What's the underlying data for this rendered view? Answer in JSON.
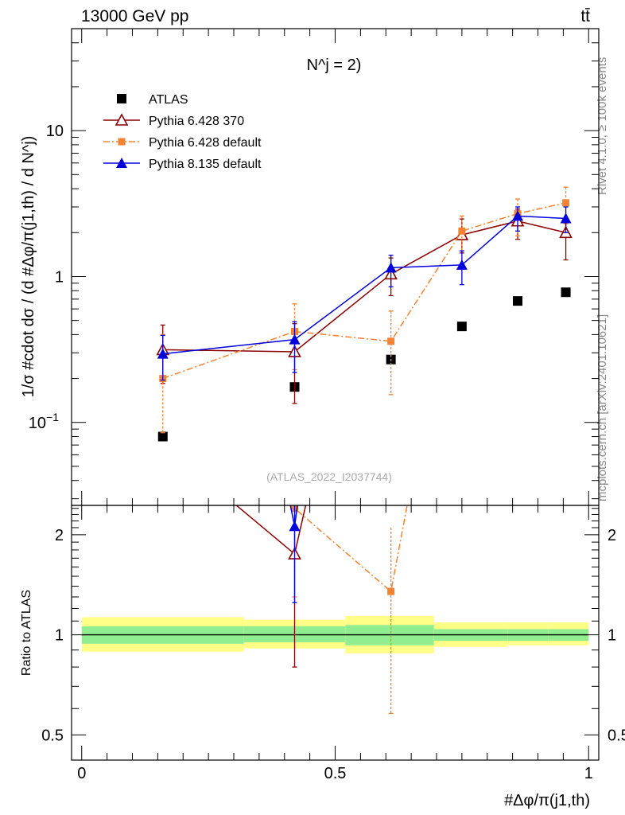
{
  "header": {
    "energy_label": "13000 GeV pp",
    "process_label": "tt̄"
  },
  "side_labels": {
    "rivet": "Rivet 4.1.0, ≥ 100k events",
    "mcplots": "mcplots.cern.ch [arXiv:2401.10621]"
  },
  "chart_data": [
    {
      "type": "line",
      "panel": "main",
      "title": "N^j = 2)",
      "watermark": "(ATLAS_2022_I2037744)",
      "xlabel": "#Δφ/π(j1,th)",
      "ylabel": "1/σ #cdot dσ / (d #Δφ/π(j1,th) / d N^j)",
      "yscale": "log",
      "xlim": [
        -0.02,
        1.02
      ],
      "ylim": [
        0.027,
        50
      ],
      "ytick_labels": [
        "10^-1",
        "1",
        "10"
      ],
      "x": [
        0.16,
        0.42,
        0.61,
        0.75,
        0.86,
        0.955
      ],
      "series": [
        {
          "name": "ATLAS",
          "color": "#000000",
          "marker": "square",
          "values": [
            0.08,
            0.175,
            0.27,
            0.455,
            0.68,
            0.78
          ],
          "err_lo": [
            0.0,
            0.0,
            0.0,
            0.0,
            0.0,
            0.0
          ],
          "err_hi": [
            0.0,
            0.0,
            0.0,
            0.0,
            0.0,
            0.0
          ]
        },
        {
          "name": "Pythia 6.428 370",
          "color": "#8b0000",
          "marker": "open-triangle",
          "dash": "",
          "values": [
            0.315,
            0.305,
            1.04,
            1.93,
            2.4,
            2.0
          ],
          "err_lo": [
            0.13,
            0.17,
            0.3,
            0.48,
            0.6,
            0.7
          ],
          "err_hi": [
            0.15,
            0.17,
            0.3,
            0.55,
            0.5,
            0.5
          ]
        },
        {
          "name": "Pythia 6.428 default",
          "color": "#f58231",
          "marker": "filled-square",
          "dash": "8 3 2 3",
          "values": [
            0.2,
            0.42,
            0.36,
            2.05,
            2.7,
            3.2
          ],
          "err_lo": [
            0.115,
            0.19,
            0.205,
            0.55,
            0.8,
            0.9
          ],
          "err_hi": [
            0.2,
            0.23,
            0.22,
            0.55,
            0.7,
            0.9
          ]
        },
        {
          "name": "Pythia 8.135 default",
          "color": "#0000dd",
          "marker": "filled-triangle",
          "dash": "",
          "values": [
            0.295,
            0.37,
            1.15,
            1.2,
            2.6,
            2.5
          ],
          "err_lo": [
            0.1,
            0.15,
            0.3,
            0.32,
            0.55,
            0.5
          ],
          "err_hi": [
            0.1,
            0.12,
            0.25,
            0.3,
            0.4,
            0.5
          ]
        }
      ]
    },
    {
      "type": "line",
      "panel": "ratio",
      "ylabel": "Ratio to ATLAS",
      "yscale": "log",
      "xlim": [
        -0.02,
        1.02
      ],
      "ylim": [
        0.42,
        2.45
      ],
      "ytick_labels": [
        "0.5",
        "1",
        "2"
      ],
      "xtick_labels": [
        "0",
        "0.5",
        "1"
      ],
      "reference_line": 1.0,
      "bands": {
        "bins": [
          [
            0.0,
            0.32
          ],
          [
            0.32,
            0.52
          ],
          [
            0.52,
            0.695
          ],
          [
            0.695,
            0.84
          ],
          [
            0.84,
            0.92
          ],
          [
            0.92,
            1.0
          ]
        ],
        "outer": [
          [
            0.89,
            1.13
          ],
          [
            0.91,
            1.11
          ],
          [
            0.88,
            1.14
          ],
          [
            0.92,
            1.09
          ],
          [
            0.93,
            1.09
          ],
          [
            0.93,
            1.09
          ]
        ],
        "inner": [
          [
            0.94,
            1.06
          ],
          [
            0.95,
            1.06
          ],
          [
            0.93,
            1.07
          ],
          [
            0.96,
            1.04
          ],
          [
            0.96,
            1.04
          ],
          [
            0.96,
            1.04
          ]
        ],
        "outer_color": "#ffff88",
        "inner_color": "#90ee90"
      },
      "series": [
        {
          "name": "Pythia 6.428 370",
          "color": "#8b0000",
          "marker": "open-triangle",
          "dash": "",
          "x": [
            0.0,
            0.42,
            0.5
          ],
          "values": [
            6.0,
            1.75,
            6.0
          ],
          "err_lo": [
            0,
            0.95,
            0
          ],
          "err_hi": [
            0,
            1.0,
            0
          ],
          "markers": [
            false,
            true,
            false
          ]
        },
        {
          "name": "Pythia 6.428 default",
          "color": "#f58231",
          "marker": "filled-square",
          "dash": "8 3 2 3",
          "x": [
            0.0,
            0.42,
            0.61,
            0.69
          ],
          "values": [
            6.0,
            2.4,
            1.35,
            6.0
          ],
          "err_lo": [
            0,
            1.1,
            0.77,
            0
          ],
          "err_hi": [
            0,
            1.4,
            0.75,
            0
          ],
          "markers": [
            false,
            true,
            true,
            false
          ]
        },
        {
          "name": "Pythia 8.135 default",
          "color": "#0000dd",
          "marker": "filled-triangle",
          "dash": "",
          "x": [
            0.36,
            0.42,
            0.46
          ],
          "values": [
            6.0,
            2.12,
            6.0
          ],
          "err_lo": [
            0,
            0.87,
            0
          ],
          "err_hi": [
            0,
            0.5,
            0
          ],
          "markers": [
            false,
            true,
            false
          ]
        }
      ]
    }
  ]
}
